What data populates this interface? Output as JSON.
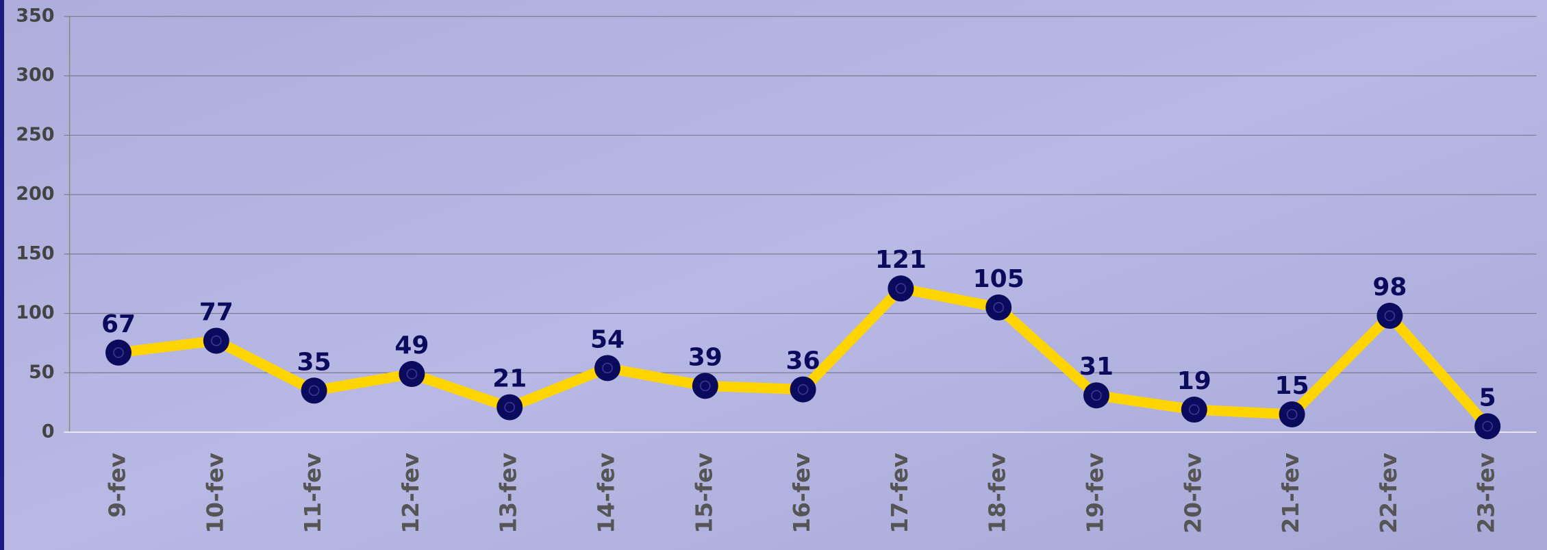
{
  "chart_data": {
    "type": "line",
    "categories": [
      "9-fev",
      "10-fev",
      "11-fev",
      "12-fev",
      "13-fev",
      "14-fev",
      "15-fev",
      "16-fev",
      "17-fev",
      "18-fev",
      "19-fev",
      "20-fev",
      "21-fev",
      "22-fev",
      "23-fev"
    ],
    "values": [
      67,
      77,
      35,
      49,
      21,
      54,
      39,
      36,
      121,
      105,
      31,
      19,
      15,
      98,
      5
    ],
    "color": "#ffd400",
    "marker_color": "#0b0b5e",
    "ylim": [
      0,
      350
    ],
    "yticks": [
      0,
      50,
      100,
      150,
      200,
      250,
      300,
      350
    ],
    "grid": true
  }
}
